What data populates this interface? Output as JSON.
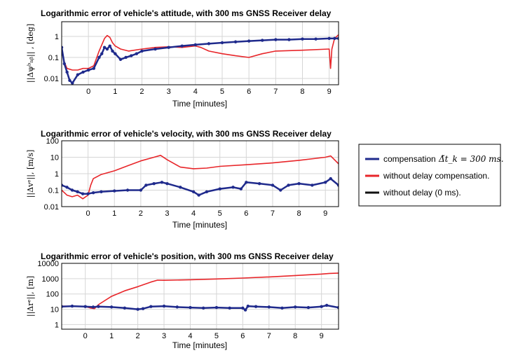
{
  "colors": {
    "compensation": "#1f2a8c",
    "without_delay_compensation": "#e8262a",
    "without_delay": "#111111",
    "grid": "#d6d6d6"
  },
  "legend": {
    "placement": "right",
    "entries": [
      {
        "label": "compensation",
        "math": "Δ̃t_k = 300 ms."
      },
      {
        "label": "without delay compensation."
      },
      {
        "label": "without delay (0 ms)."
      }
    ]
  },
  "chart_data": [
    {
      "type": "line",
      "yscale": "log",
      "grid": true,
      "title": "Logarithmic error of vehicle's attitude, with 300 ms GNSS Receiver delay",
      "xlabel": "Time [minutes]",
      "ylabel": "||Δψᵇₙᵦ|| , [deg]",
      "xlim": [
        -1.0,
        9.35
      ],
      "ylim": [
        0.005,
        5
      ],
      "xticks": [
        "0",
        "1",
        "2",
        "3",
        "4",
        "5",
        "6",
        "7",
        "8",
        "9"
      ],
      "yticks": [
        "0.01",
        "0.1",
        "1"
      ],
      "series": [
        {
          "name": "compensation",
          "x": [
            -1.0,
            -0.9,
            -0.8,
            -0.7,
            -0.6,
            -0.4,
            -0.2,
            0.0,
            0.2,
            0.4,
            0.5,
            0.6,
            0.7,
            0.8,
            0.9,
            1.0,
            1.2,
            1.4,
            1.6,
            1.8,
            2.0,
            2.5,
            3.0,
            3.5,
            4.0,
            4.5,
            5.0,
            5.5,
            6.0,
            6.5,
            7.0,
            7.5,
            8.0,
            8.5,
            9.0,
            9.2,
            9.35
          ],
          "y": [
            0.3,
            0.05,
            0.02,
            0.008,
            0.006,
            0.015,
            0.02,
            0.025,
            0.03,
            0.1,
            0.15,
            0.3,
            0.25,
            0.35,
            0.2,
            0.15,
            0.08,
            0.1,
            0.12,
            0.15,
            0.2,
            0.25,
            0.3,
            0.35,
            0.4,
            0.45,
            0.5,
            0.55,
            0.6,
            0.65,
            0.7,
            0.7,
            0.75,
            0.75,
            0.8,
            0.8,
            0.8
          ]
        },
        {
          "name": "without delay compensation.",
          "x": [
            -1.0,
            -0.9,
            -0.8,
            -0.6,
            -0.4,
            -0.2,
            0.0,
            0.2,
            0.4,
            0.6,
            0.7,
            0.8,
            0.9,
            1.0,
            1.2,
            1.5,
            2.0,
            2.5,
            3.0,
            3.5,
            4.0,
            4.2,
            4.5,
            5.0,
            5.5,
            6.0,
            6.5,
            7.0,
            8.0,
            9.0,
            9.05,
            9.1,
            9.2,
            9.35
          ],
          "y": [
            0.2,
            0.06,
            0.03,
            0.025,
            0.025,
            0.03,
            0.03,
            0.04,
            0.2,
            0.8,
            1.1,
            0.9,
            0.5,
            0.35,
            0.25,
            0.2,
            0.25,
            0.3,
            0.32,
            0.3,
            0.35,
            0.3,
            0.2,
            0.15,
            0.12,
            0.1,
            0.15,
            0.2,
            0.22,
            0.25,
            0.03,
            0.25,
            0.8,
            1.2
          ]
        }
      ]
    },
    {
      "type": "line",
      "yscale": "log",
      "grid": true,
      "title": "Logarithmic error of vehicle's velocity, with 300 ms GNSS Receiver delay",
      "xlabel": "Time [minutes]",
      "ylabel": "||Δvᵉ||, [m/s]",
      "xlim": [
        -1.0,
        9.5
      ],
      "ylim": [
        0.01,
        100
      ],
      "xticks": [
        "0",
        "1",
        "2",
        "3",
        "4",
        "5",
        "6",
        "7",
        "8",
        "9"
      ],
      "yticks": [
        "0.01",
        "0.1",
        "1",
        "10",
        "100"
      ],
      "series": [
        {
          "name": "compensation",
          "x": [
            -1.0,
            -0.8,
            -0.6,
            -0.4,
            -0.2,
            0.0,
            0.2,
            0.5,
            1.0,
            1.5,
            2.0,
            2.2,
            2.5,
            2.8,
            3.0,
            3.5,
            4.0,
            4.2,
            4.5,
            5.0,
            5.5,
            5.8,
            6.0,
            6.5,
            7.0,
            7.3,
            7.6,
            8.0,
            8.5,
            9.0,
            9.2,
            9.5
          ],
          "y": [
            0.2,
            0.15,
            0.1,
            0.08,
            0.06,
            0.06,
            0.07,
            0.08,
            0.09,
            0.1,
            0.1,
            0.2,
            0.25,
            0.3,
            0.25,
            0.15,
            0.08,
            0.05,
            0.08,
            0.12,
            0.15,
            0.12,
            0.3,
            0.25,
            0.2,
            0.1,
            0.2,
            0.25,
            0.2,
            0.3,
            0.5,
            0.2
          ]
        },
        {
          "name": "without delay compensation.",
          "x": [
            -1.0,
            -0.8,
            -0.6,
            -0.4,
            -0.2,
            0.0,
            0.1,
            0.2,
            0.5,
            1.0,
            1.5,
            2.0,
            2.5,
            2.75,
            3.0,
            3.5,
            4.0,
            4.5,
            5.0,
            6.0,
            7.0,
            8.0,
            9.0,
            9.2,
            9.5
          ],
          "y": [
            0.1,
            0.05,
            0.04,
            0.05,
            0.03,
            0.05,
            0.2,
            0.5,
            0.9,
            1.5,
            3,
            6,
            10,
            13,
            7,
            2.5,
            2,
            2.2,
            2.8,
            3.5,
            4.5,
            6.5,
            10,
            12,
            4
          ]
        }
      ]
    },
    {
      "type": "line",
      "yscale": "log",
      "grid": true,
      "title": "Logarithmic error of vehicle's position, with 300 ms GNSS Receiver delay",
      "xlabel": "Time [minutes]",
      "ylabel": "||Δrᵉ||, [m]",
      "xlim": [
        -0.9,
        9.65
      ],
      "ylim": [
        0.5,
        10000
      ],
      "xticks": [
        "0",
        "1",
        "2",
        "3",
        "4",
        "5",
        "6",
        "7",
        "8",
        "9"
      ],
      "yticks": [
        "1",
        "10",
        "100",
        "1000",
        "10000"
      ],
      "series": [
        {
          "name": "compensation",
          "x": [
            -0.9,
            -0.5,
            0.0,
            0.3,
            0.5,
            1.0,
            1.5,
            2.0,
            2.2,
            2.5,
            3.0,
            3.5,
            4.0,
            4.5,
            5.0,
            5.5,
            6.0,
            6.1,
            6.2,
            6.5,
            7.0,
            7.5,
            8.0,
            8.5,
            9.0,
            9.2,
            9.65
          ],
          "y": [
            15,
            16,
            15,
            14,
            15,
            14,
            12,
            10,
            11,
            15,
            16,
            14,
            13,
            12,
            13,
            12,
            12,
            9,
            16,
            15,
            14,
            12,
            14,
            13,
            15,
            18,
            13
          ]
        },
        {
          "name": "without delay compensation.",
          "x": [
            -0.9,
            0.0,
            0.2,
            0.35,
            0.5,
            1.0,
            1.5,
            2.0,
            2.5,
            2.75,
            3.0,
            4.0,
            5.0,
            6.0,
            7.0,
            8.0,
            9.0,
            9.3,
            9.65
          ],
          "y": [
            16,
            15,
            12,
            11,
            20,
            70,
            160,
            300,
            600,
            800,
            780,
            850,
            950,
            1100,
            1300,
            1600,
            2000,
            2200,
            2300
          ]
        }
      ]
    }
  ]
}
